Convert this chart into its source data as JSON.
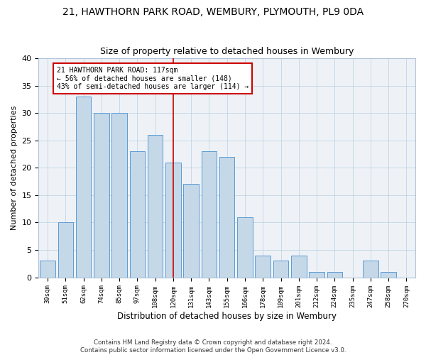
{
  "title": "21, HAWTHORN PARK ROAD, WEMBURY, PLYMOUTH, PL9 0DA",
  "subtitle": "Size of property relative to detached houses in Wembury",
  "xlabel": "Distribution of detached houses by size in Wembury",
  "ylabel": "Number of detached properties",
  "categories": [
    "39sqm",
    "51sqm",
    "62sqm",
    "74sqm",
    "85sqm",
    "97sqm",
    "108sqm",
    "120sqm",
    "131sqm",
    "143sqm",
    "155sqm",
    "166sqm",
    "178sqm",
    "189sqm",
    "201sqm",
    "212sqm",
    "224sqm",
    "235sqm",
    "247sqm",
    "258sqm",
    "270sqm"
  ],
  "values": [
    3,
    10,
    33,
    30,
    30,
    23,
    26,
    21,
    17,
    23,
    22,
    11,
    4,
    3,
    4,
    1,
    1,
    0,
    3,
    1,
    0
  ],
  "bar_color": "#c5d8e8",
  "bar_edge_color": "#5b9bd5",
  "vline_x": 7,
  "vline_color": "#cc0000",
  "annotation_text": "21 HAWTHORN PARK ROAD: 117sqm\n← 56% of detached houses are smaller (148)\n43% of semi-detached houses are larger (114) →",
  "annotation_box_color": "#cc0000",
  "annotation_text_color": "#000000",
  "background_color": "#eef2f7",
  "ylim": [
    0,
    40
  ],
  "yticks": [
    0,
    5,
    10,
    15,
    20,
    25,
    30,
    35,
    40
  ],
  "footer1": "Contains HM Land Registry data © Crown copyright and database right 2024.",
  "footer2": "Contains public sector information licensed under the Open Government Licence v3.0."
}
